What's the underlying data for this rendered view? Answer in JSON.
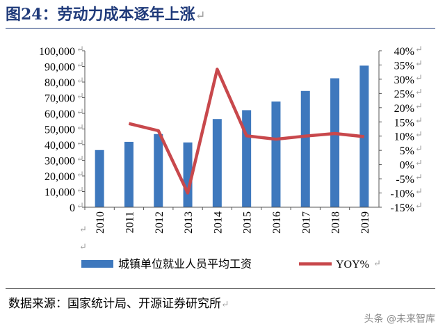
{
  "figure": {
    "title": "图24：劳动力成本逐年上涨",
    "source": "数据来源：国家统计局、开源证券研究所",
    "watermark": "头条 @未来智库",
    "return_mark": "↵"
  },
  "chart_data": {
    "type": "bar",
    "categories": [
      "2010",
      "2011",
      "2012",
      "2013",
      "2014",
      "2015",
      "2016",
      "2017",
      "2018",
      "2019"
    ],
    "series": [
      {
        "name": "城镇单位就业人员平均工资",
        "type": "bar",
        "axis": "left",
        "color": "#3e78bd",
        "values": [
          36539,
          41799,
          46769,
          41400,
          56360,
          62029,
          67569,
          74318,
          82413,
          90501
        ]
      },
      {
        "name": "YOY%",
        "type": "line",
        "axis": "right",
        "color": "#c8484c",
        "values": [
          null,
          14.4,
          11.9,
          -10,
          33.5,
          10.1,
          8.9,
          10.0,
          10.9,
          9.8
        ]
      }
    ],
    "y_left": {
      "min": 0,
      "max": 100000,
      "ticks": [
        "0",
        "10,000",
        "20,000",
        "30,000",
        "40,000",
        "50,000",
        "60,000",
        "70,000",
        "80,000",
        "90,000",
        "100,000"
      ]
    },
    "y_right": {
      "min": -15,
      "max": 40,
      "ticks": [
        "-15%",
        "-10%",
        "-5%",
        "0%",
        "5%",
        "10%",
        "15%",
        "20%",
        "25%",
        "30%",
        "35%",
        "40%"
      ]
    },
    "grid": false,
    "legend_position": "bottom"
  }
}
